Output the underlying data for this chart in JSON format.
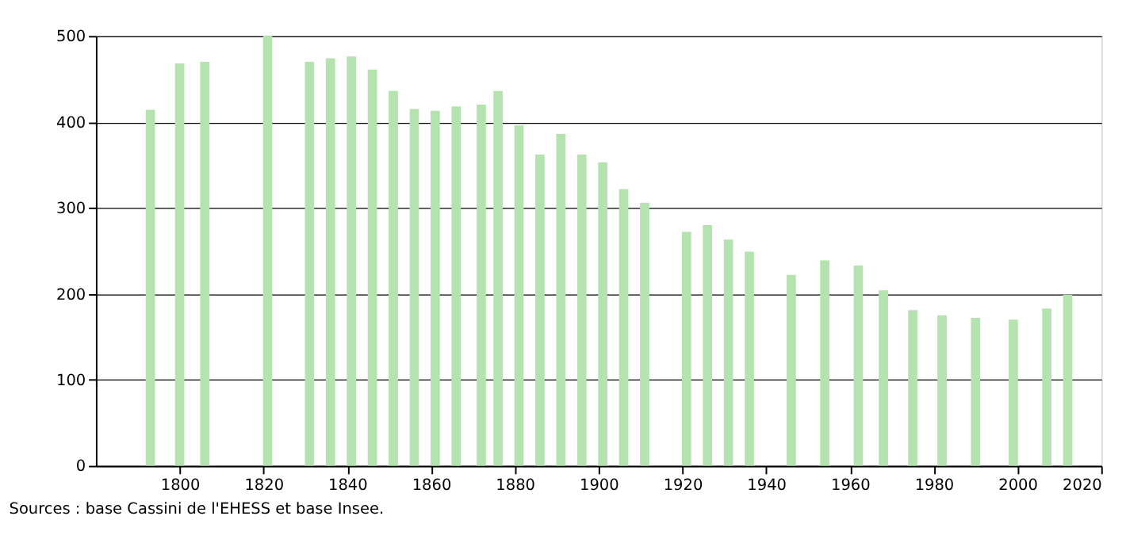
{
  "chart_data": {
    "type": "bar",
    "x": [
      1793,
      1800,
      1806,
      1821,
      1831,
      1836,
      1841,
      1846,
      1851,
      1856,
      1861,
      1866,
      1872,
      1876,
      1881,
      1886,
      1891,
      1896,
      1901,
      1906,
      1911,
      1921,
      1926,
      1931,
      1936,
      1946,
      1954,
      1962,
      1968,
      1975,
      1982,
      1990,
      1999,
      2007,
      2012
    ],
    "series": [
      {
        "color": "#b5e3b0",
        "values": [
          414,
          468,
          470,
          500,
          470,
          474,
          476,
          461,
          436,
          415,
          413,
          418,
          420,
          436,
          396,
          362,
          386,
          362,
          353,
          322,
          306,
          272,
          280,
          263,
          249,
          222,
          239,
          233,
          204,
          181,
          175,
          172,
          170,
          183,
          199
        ]
      }
    ],
    "xlim": [
      1780,
      2020
    ],
    "xticks": [
      1800,
      1820,
      1840,
      1860,
      1880,
      1900,
      1920,
      1940,
      1960,
      1980,
      2000,
      2020
    ],
    "ylim": [
      0,
      500
    ],
    "yticks": [
      0,
      100,
      200,
      300,
      400,
      500
    ],
    "grid": "y",
    "annotations": [
      "Sources : base Cassini de l'EHESS et base Insee."
    ]
  }
}
